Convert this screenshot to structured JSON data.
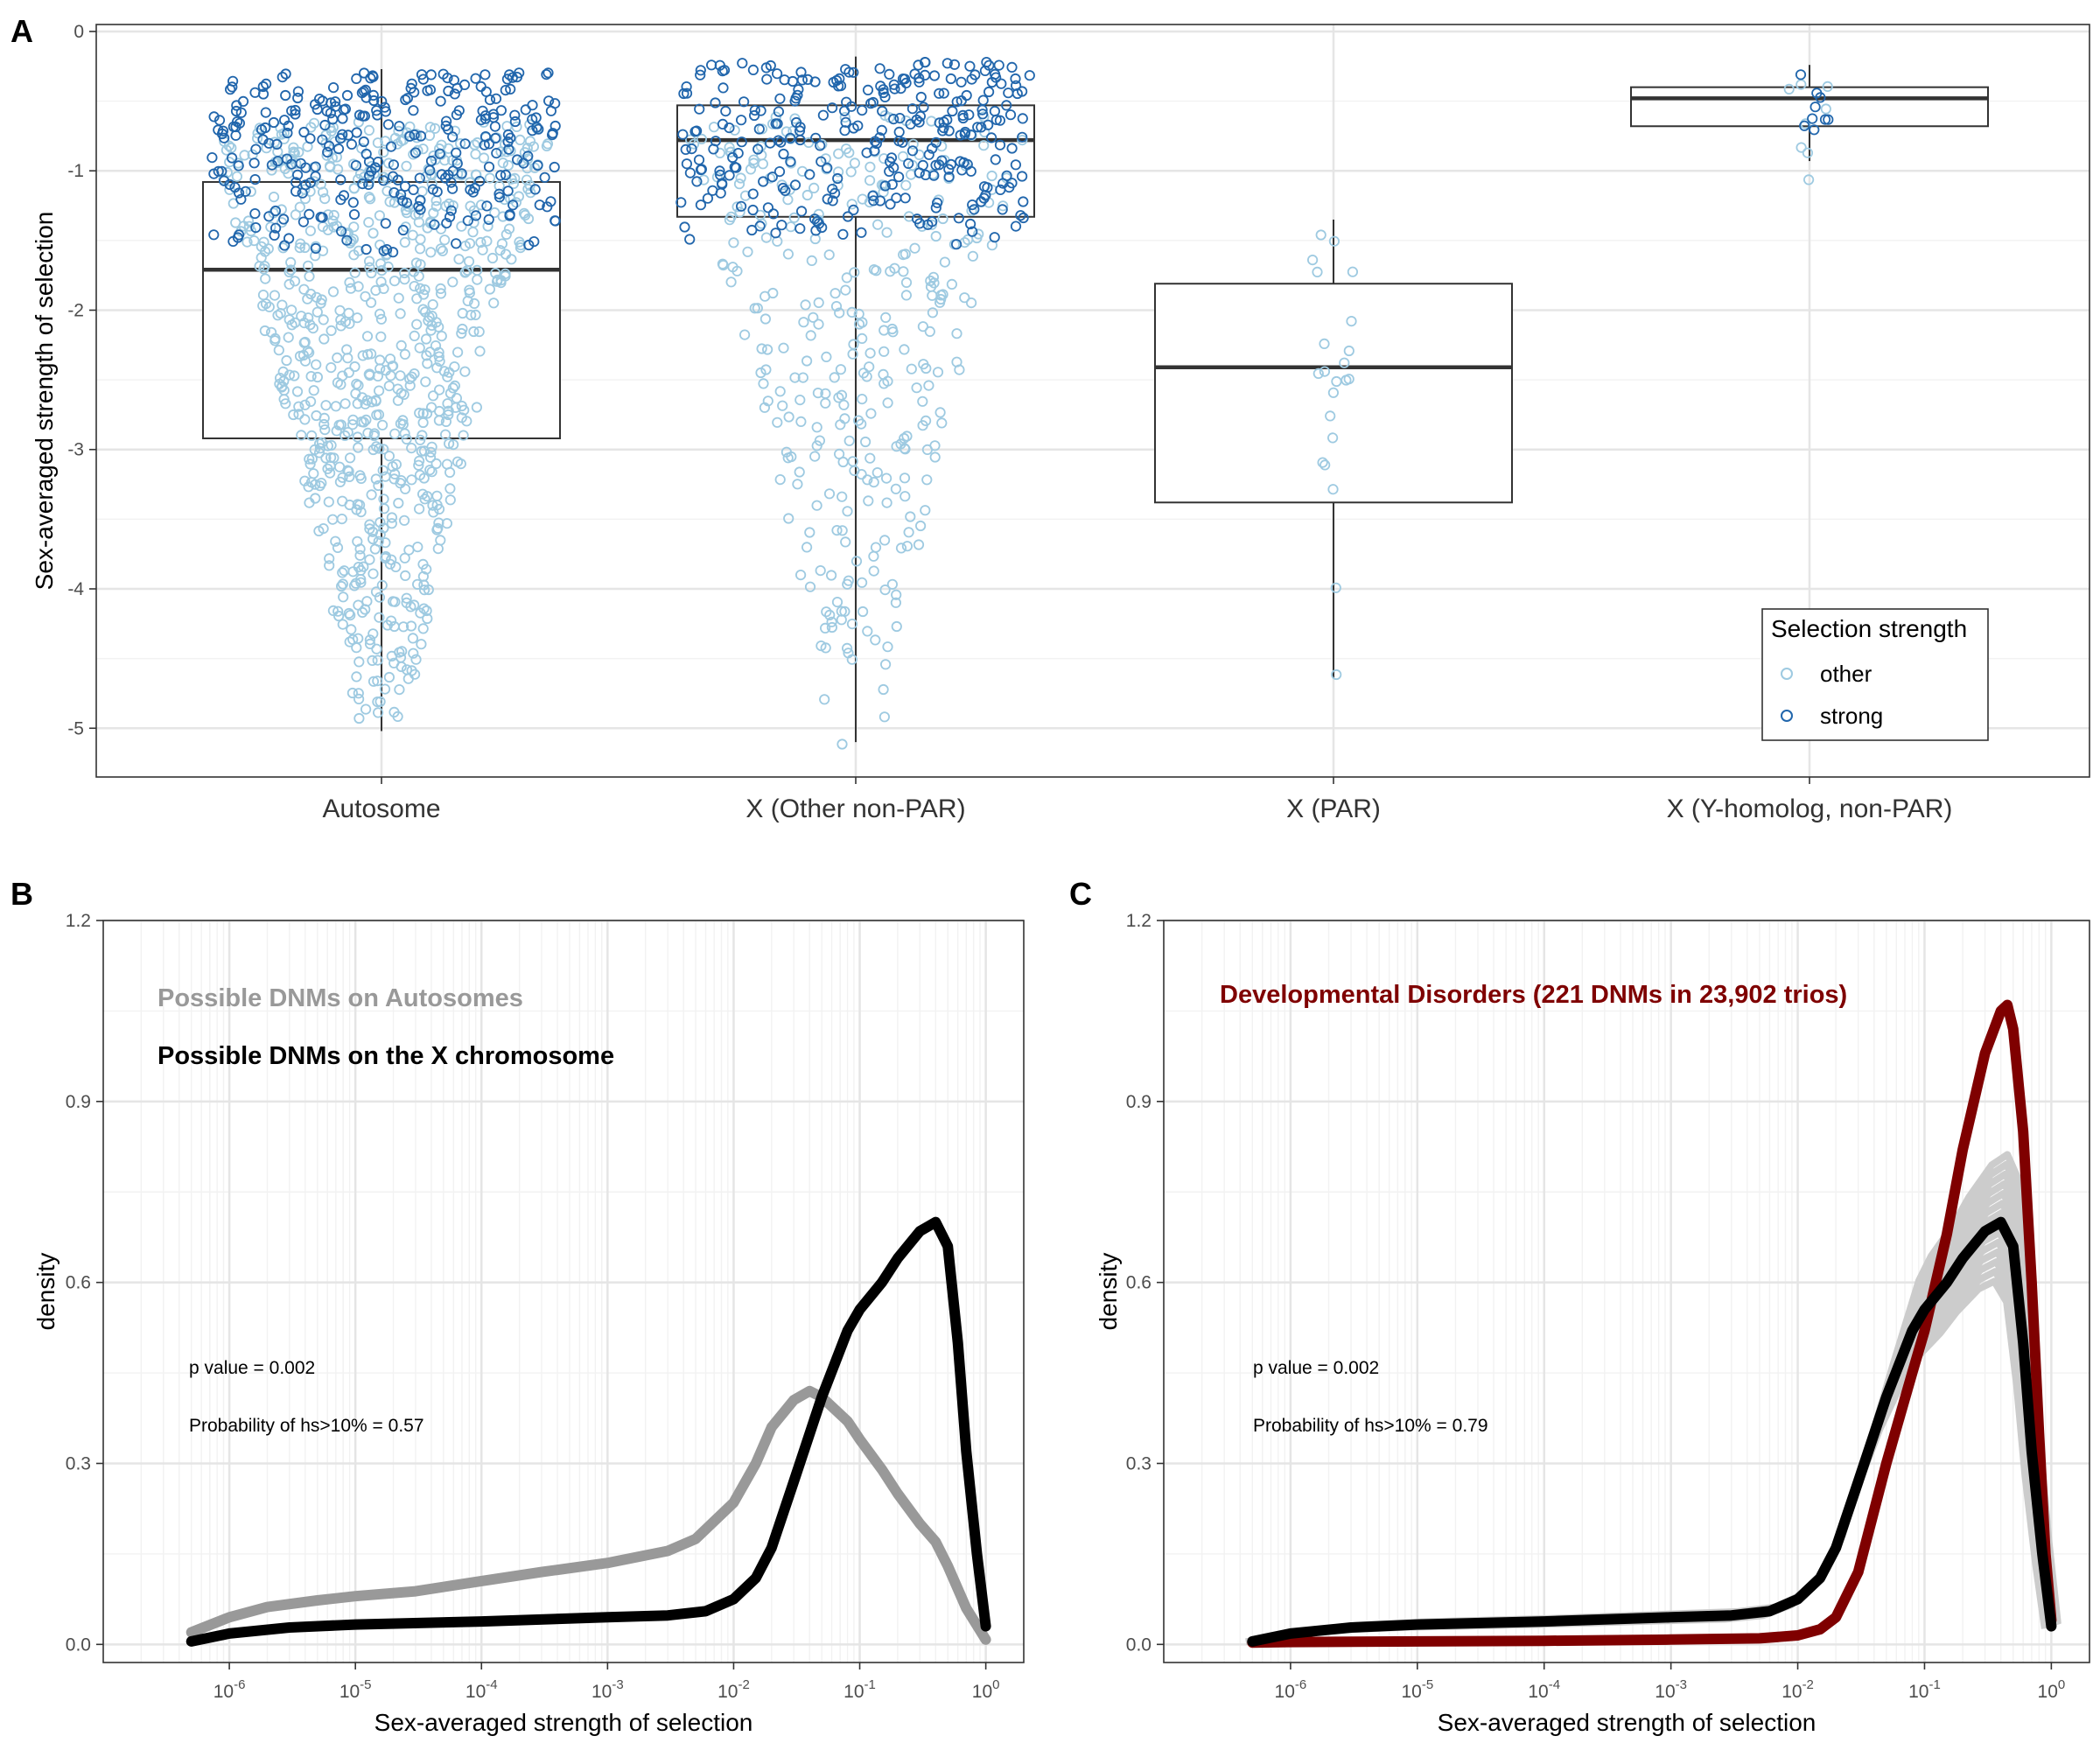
{
  "panels": {
    "A": {
      "letter": "A",
      "ylabel": "Sex-averaged strength of selection",
      "legend": {
        "title": "Selection strength",
        "items": [
          {
            "label": "other",
            "color": "#9ecae1"
          },
          {
            "label": "strong",
            "color": "#2166ac"
          }
        ]
      }
    },
    "B": {
      "letter": "B",
      "xlabel": "Sex-averaged strength of selection",
      "ylabel": "density",
      "annotations": [
        {
          "text": "Possible DNMs on Autosomes",
          "color": "#999999"
        },
        {
          "text": "Possible DNMs on the X chromosome",
          "color": "#000000"
        }
      ],
      "notes": [
        "p value = 0.002",
        "Probability of hs>10% = 0.57"
      ]
    },
    "C": {
      "letter": "C",
      "xlabel": "Sex-averaged strength of selection",
      "ylabel": "density",
      "annotations": [
        {
          "text": "Developmental Disorders (221 DNMs in 23,902 trios)",
          "color": "#7f0000"
        }
      ],
      "notes": [
        "p value = 0.002",
        "Probability of hs>10% = 0.79"
      ]
    }
  },
  "chart_data": [
    {
      "type": "box",
      "panel": "A",
      "ylabel": "Sex-averaged strength of selection",
      "ylim": [
        -5.35,
        0.05
      ],
      "yticks": [
        0,
        -1,
        -2,
        -3,
        -4,
        -5
      ],
      "ytick_labels": [
        "0",
        "-1",
        "-2",
        "-3",
        "-4",
        "-5"
      ],
      "categories": [
        "Autosome",
        "X (Other non-PAR)",
        "X (PAR)",
        "X (Y-homolog, non-PAR)"
      ],
      "boxes": [
        {
          "q1": -2.92,
          "median": -1.71,
          "q3": -1.08,
          "whisker_low": -5.02,
          "whisker_high": -0.27
        },
        {
          "q1": -1.33,
          "median": -0.78,
          "q3": -0.53,
          "whisker_low": -5.1,
          "whisker_high": -0.18
        },
        {
          "q1": -3.38,
          "median": -2.41,
          "q3": -1.81,
          "whisker_low": -4.64,
          "whisker_high": -1.35
        },
        {
          "q1": -0.68,
          "median": -0.48,
          "q3": -0.4,
          "whisker_low": -0.93,
          "whisker_high": -0.24
        }
      ],
      "points": [
        {
          "strong_count": 300,
          "strong_range": [
            -1.6,
            -0.28
          ],
          "other_count": 780,
          "other_range": [
            -5.05,
            -0.65
          ]
        },
        {
          "strong_count": 300,
          "strong_range": [
            -1.55,
            -0.22
          ],
          "other_count": 330,
          "other_range": [
            -5.12,
            -0.6
          ]
        },
        {
          "strong_count": 0,
          "strong_range": [
            0,
            0
          ],
          "other_count": 22,
          "other_range": [
            -4.64,
            -1.35
          ]
        },
        {
          "strong_count": 9,
          "strong_range": [
            -0.93,
            -0.24
          ],
          "other_count": 8,
          "other_range": [
            -1.16,
            -0.35
          ]
        }
      ],
      "series": [
        {
          "name": "other",
          "color": "#9ecae1"
        },
        {
          "name": "strong",
          "color": "#2166ac"
        }
      ],
      "grid": true,
      "legend_position": "bottom-right"
    },
    {
      "type": "line",
      "panel": "B",
      "xlabel": "Sex-averaged strength of selection",
      "ylabel": "density",
      "x_scale": "log10",
      "xlim": [
        1e-07,
        2
      ],
      "ylim": [
        -0.03,
        1.2
      ],
      "yticks": [
        0,
        0.3,
        0.6,
        0.9,
        1.2
      ],
      "ytick_labels": [
        "0.0",
        "0.3",
        "0.6",
        "0.9",
        "1.2"
      ],
      "xtick_exponents": [
        "-6",
        "-5",
        "-4",
        "-3",
        "-2",
        "-1",
        "0"
      ],
      "grid": true,
      "series": [
        {
          "name": "Possible DNMs on Autosomes",
          "color": "#999999",
          "x": [
            5e-07,
            1e-06,
            2e-06,
            5e-06,
            1e-05,
            3e-05,
            0.0001,
            0.0003,
            0.001,
            0.003,
            0.005,
            0.01,
            0.015,
            0.02,
            0.03,
            0.04,
            0.05,
            0.08,
            0.1,
            0.15,
            0.2,
            0.3,
            0.4,
            0.5,
            0.7,
            1.0
          ],
          "y": [
            0.02,
            0.045,
            0.062,
            0.073,
            0.08,
            0.088,
            0.105,
            0.12,
            0.135,
            0.155,
            0.175,
            0.235,
            0.3,
            0.36,
            0.405,
            0.42,
            0.41,
            0.37,
            0.34,
            0.29,
            0.25,
            0.2,
            0.17,
            0.13,
            0.06,
            0.008
          ]
        },
        {
          "name": "Possible DNMs on the X chromosome",
          "color": "#000000",
          "x": [
            5e-07,
            1e-06,
            3e-06,
            1e-05,
            0.0001,
            0.001,
            0.003,
            0.006,
            0.01,
            0.015,
            0.02,
            0.03,
            0.05,
            0.08,
            0.1,
            0.15,
            0.2,
            0.3,
            0.4,
            0.5,
            0.6,
            0.7,
            0.85,
            1.0
          ],
          "y": [
            0.005,
            0.018,
            0.028,
            0.033,
            0.038,
            0.045,
            0.048,
            0.055,
            0.075,
            0.11,
            0.16,
            0.27,
            0.41,
            0.52,
            0.555,
            0.6,
            0.64,
            0.685,
            0.7,
            0.66,
            0.5,
            0.32,
            0.15,
            0.03
          ]
        }
      ]
    },
    {
      "type": "line",
      "panel": "C",
      "xlabel": "Sex-averaged strength of selection",
      "ylabel": "density",
      "x_scale": "log10",
      "xlim": [
        1e-07,
        2
      ],
      "ylim": [
        -0.03,
        1.2
      ],
      "yticks": [
        0,
        0.3,
        0.6,
        0.9,
        1.2
      ],
      "ytick_labels": [
        "0.0",
        "0.3",
        "0.6",
        "0.9",
        "1.2"
      ],
      "xtick_exponents": [
        "-6",
        "-5",
        "-4",
        "-3",
        "-2",
        "-1",
        "0"
      ],
      "grid": true,
      "series": [
        {
          "name": "Developmental Disorders (221 DNMs in 23,902 trios)",
          "color": "#7f0000",
          "x": [
            5e-07,
            1e-06,
            1e-05,
            0.0001,
            0.001,
            0.005,
            0.01,
            0.015,
            0.02,
            0.03,
            0.05,
            0.08,
            0.1,
            0.15,
            0.2,
            0.3,
            0.4,
            0.45,
            0.5,
            0.6,
            0.7,
            0.8,
            0.9,
            1.0
          ],
          "y": [
            0.003,
            0.004,
            0.005,
            0.006,
            0.008,
            0.01,
            0.015,
            0.025,
            0.045,
            0.12,
            0.3,
            0.45,
            0.52,
            0.68,
            0.82,
            0.98,
            1.05,
            1.06,
            1.02,
            0.85,
            0.6,
            0.35,
            0.15,
            0.04
          ]
        },
        {
          "name": "Possible DNMs on the X chromosome",
          "color": "#000000",
          "x": [
            5e-07,
            1e-06,
            3e-06,
            1e-05,
            0.0001,
            0.001,
            0.003,
            0.006,
            0.01,
            0.015,
            0.02,
            0.03,
            0.05,
            0.08,
            0.1,
            0.15,
            0.2,
            0.3,
            0.4,
            0.5,
            0.6,
            0.7,
            0.85,
            1.0
          ],
          "y": [
            0.005,
            0.018,
            0.028,
            0.033,
            0.038,
            0.045,
            0.048,
            0.055,
            0.075,
            0.11,
            0.16,
            0.27,
            0.41,
            0.52,
            0.555,
            0.6,
            0.64,
            0.685,
            0.7,
            0.66,
            0.5,
            0.32,
            0.15,
            0.03
          ]
        }
      ]
    }
  ]
}
